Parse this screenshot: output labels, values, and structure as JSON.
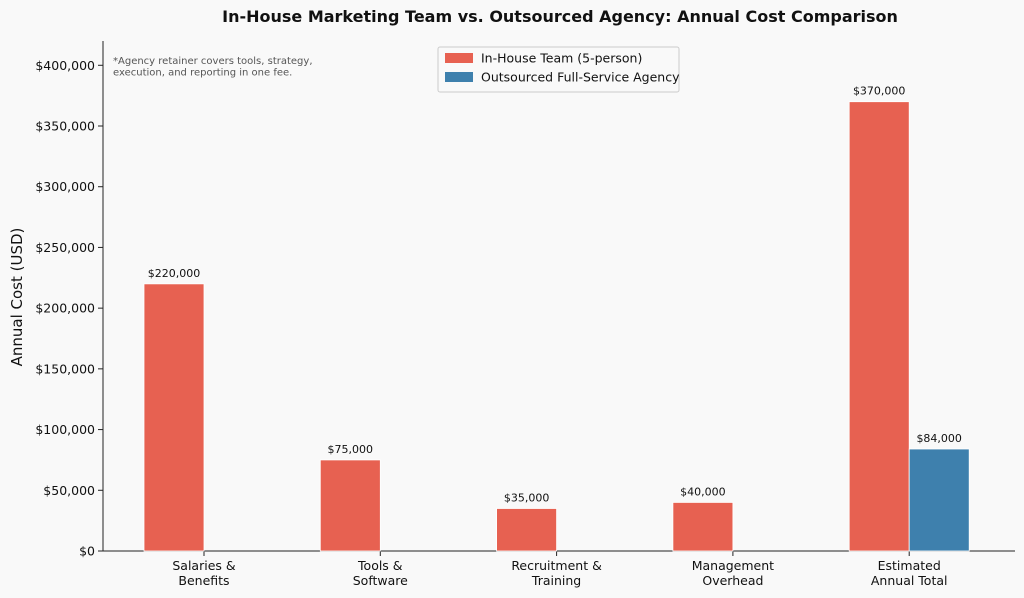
{
  "chart_data": {
    "type": "bar",
    "title": "In-House Marketing Team vs. Outsourced Agency: Annual Cost Comparison",
    "xlabel": "",
    "ylabel": "Annual Cost (USD)",
    "categories": [
      [
        "Salaries &",
        "Benefits"
      ],
      [
        "Tools &",
        "Software"
      ],
      [
        "Recruitment &",
        "Training"
      ],
      [
        "Management",
        "Overhead"
      ],
      [
        "Estimated",
        "Annual Total"
      ]
    ],
    "series": [
      {
        "name": "In-House Team (5-person)",
        "color": "#e76151",
        "values": [
          220000,
          75000,
          35000,
          40000,
          370000
        ],
        "labels": [
          "$220,000",
          "$75,000",
          "$35,000",
          "$40,000",
          "$370,000"
        ]
      },
      {
        "name": "Outsourced Full-Service Agency",
        "color": "#3e80ad",
        "values": [
          null,
          null,
          null,
          null,
          84000
        ],
        "labels": [
          "",
          "",
          "",
          "",
          "$84,000"
        ]
      }
    ],
    "ylim": [
      0,
      420000
    ],
    "yticks": [
      0,
      50000,
      100000,
      150000,
      200000,
      250000,
      300000,
      350000,
      400000
    ],
    "ytick_labels": [
      "$0",
      "$50,000",
      "$100,000",
      "$150,000",
      "$200,000",
      "$250,000",
      "$300,000",
      "$350,000",
      "$400,000"
    ],
    "note": [
      "*Agency retainer covers tools, strategy,",
      "execution, and reporting in one fee."
    ],
    "legend_position": "top-center",
    "grid": false
  }
}
